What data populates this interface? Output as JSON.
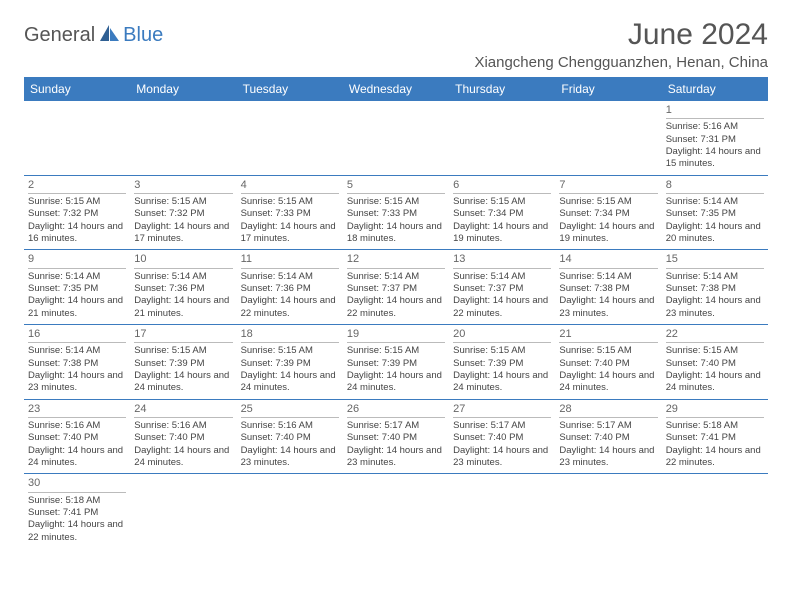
{
  "logo": {
    "text1": "General",
    "text2": "Blue"
  },
  "header": {
    "title": "June 2024",
    "location": "Xiangcheng Chengguanzhen, Henan, China"
  },
  "colors": {
    "header_bg": "#3b7bbf",
    "header_text": "#ffffff",
    "cell_border": "#3b7bbf",
    "daynum_rule": "#bbbbbb",
    "body_text": "#444444",
    "title_text": "#555555"
  },
  "weekdays": [
    "Sunday",
    "Monday",
    "Tuesday",
    "Wednesday",
    "Thursday",
    "Friday",
    "Saturday"
  ],
  "weeks": [
    [
      null,
      null,
      null,
      null,
      null,
      null,
      {
        "d": "1",
        "sr": "Sunrise: 5:16 AM",
        "ss": "Sunset: 7:31 PM",
        "dl": "Daylight: 14 hours and 15 minutes."
      }
    ],
    [
      {
        "d": "2",
        "sr": "Sunrise: 5:15 AM",
        "ss": "Sunset: 7:32 PM",
        "dl": "Daylight: 14 hours and 16 minutes."
      },
      {
        "d": "3",
        "sr": "Sunrise: 5:15 AM",
        "ss": "Sunset: 7:32 PM",
        "dl": "Daylight: 14 hours and 17 minutes."
      },
      {
        "d": "4",
        "sr": "Sunrise: 5:15 AM",
        "ss": "Sunset: 7:33 PM",
        "dl": "Daylight: 14 hours and 17 minutes."
      },
      {
        "d": "5",
        "sr": "Sunrise: 5:15 AM",
        "ss": "Sunset: 7:33 PM",
        "dl": "Daylight: 14 hours and 18 minutes."
      },
      {
        "d": "6",
        "sr": "Sunrise: 5:15 AM",
        "ss": "Sunset: 7:34 PM",
        "dl": "Daylight: 14 hours and 19 minutes."
      },
      {
        "d": "7",
        "sr": "Sunrise: 5:15 AM",
        "ss": "Sunset: 7:34 PM",
        "dl": "Daylight: 14 hours and 19 minutes."
      },
      {
        "d": "8",
        "sr": "Sunrise: 5:14 AM",
        "ss": "Sunset: 7:35 PM",
        "dl": "Daylight: 14 hours and 20 minutes."
      }
    ],
    [
      {
        "d": "9",
        "sr": "Sunrise: 5:14 AM",
        "ss": "Sunset: 7:35 PM",
        "dl": "Daylight: 14 hours and 21 minutes."
      },
      {
        "d": "10",
        "sr": "Sunrise: 5:14 AM",
        "ss": "Sunset: 7:36 PM",
        "dl": "Daylight: 14 hours and 21 minutes."
      },
      {
        "d": "11",
        "sr": "Sunrise: 5:14 AM",
        "ss": "Sunset: 7:36 PM",
        "dl": "Daylight: 14 hours and 22 minutes."
      },
      {
        "d": "12",
        "sr": "Sunrise: 5:14 AM",
        "ss": "Sunset: 7:37 PM",
        "dl": "Daylight: 14 hours and 22 minutes."
      },
      {
        "d": "13",
        "sr": "Sunrise: 5:14 AM",
        "ss": "Sunset: 7:37 PM",
        "dl": "Daylight: 14 hours and 22 minutes."
      },
      {
        "d": "14",
        "sr": "Sunrise: 5:14 AM",
        "ss": "Sunset: 7:38 PM",
        "dl": "Daylight: 14 hours and 23 minutes."
      },
      {
        "d": "15",
        "sr": "Sunrise: 5:14 AM",
        "ss": "Sunset: 7:38 PM",
        "dl": "Daylight: 14 hours and 23 minutes."
      }
    ],
    [
      {
        "d": "16",
        "sr": "Sunrise: 5:14 AM",
        "ss": "Sunset: 7:38 PM",
        "dl": "Daylight: 14 hours and 23 minutes."
      },
      {
        "d": "17",
        "sr": "Sunrise: 5:15 AM",
        "ss": "Sunset: 7:39 PM",
        "dl": "Daylight: 14 hours and 24 minutes."
      },
      {
        "d": "18",
        "sr": "Sunrise: 5:15 AM",
        "ss": "Sunset: 7:39 PM",
        "dl": "Daylight: 14 hours and 24 minutes."
      },
      {
        "d": "19",
        "sr": "Sunrise: 5:15 AM",
        "ss": "Sunset: 7:39 PM",
        "dl": "Daylight: 14 hours and 24 minutes."
      },
      {
        "d": "20",
        "sr": "Sunrise: 5:15 AM",
        "ss": "Sunset: 7:39 PM",
        "dl": "Daylight: 14 hours and 24 minutes."
      },
      {
        "d": "21",
        "sr": "Sunrise: 5:15 AM",
        "ss": "Sunset: 7:40 PM",
        "dl": "Daylight: 14 hours and 24 minutes."
      },
      {
        "d": "22",
        "sr": "Sunrise: 5:15 AM",
        "ss": "Sunset: 7:40 PM",
        "dl": "Daylight: 14 hours and 24 minutes."
      }
    ],
    [
      {
        "d": "23",
        "sr": "Sunrise: 5:16 AM",
        "ss": "Sunset: 7:40 PM",
        "dl": "Daylight: 14 hours and 24 minutes."
      },
      {
        "d": "24",
        "sr": "Sunrise: 5:16 AM",
        "ss": "Sunset: 7:40 PM",
        "dl": "Daylight: 14 hours and 24 minutes."
      },
      {
        "d": "25",
        "sr": "Sunrise: 5:16 AM",
        "ss": "Sunset: 7:40 PM",
        "dl": "Daylight: 14 hours and 23 minutes."
      },
      {
        "d": "26",
        "sr": "Sunrise: 5:17 AM",
        "ss": "Sunset: 7:40 PM",
        "dl": "Daylight: 14 hours and 23 minutes."
      },
      {
        "d": "27",
        "sr": "Sunrise: 5:17 AM",
        "ss": "Sunset: 7:40 PM",
        "dl": "Daylight: 14 hours and 23 minutes."
      },
      {
        "d": "28",
        "sr": "Sunrise: 5:17 AM",
        "ss": "Sunset: 7:40 PM",
        "dl": "Daylight: 14 hours and 23 minutes."
      },
      {
        "d": "29",
        "sr": "Sunrise: 5:18 AM",
        "ss": "Sunset: 7:41 PM",
        "dl": "Daylight: 14 hours and 22 minutes."
      }
    ],
    [
      {
        "d": "30",
        "sr": "Sunrise: 5:18 AM",
        "ss": "Sunset: 7:41 PM",
        "dl": "Daylight: 14 hours and 22 minutes."
      },
      null,
      null,
      null,
      null,
      null,
      null
    ]
  ]
}
